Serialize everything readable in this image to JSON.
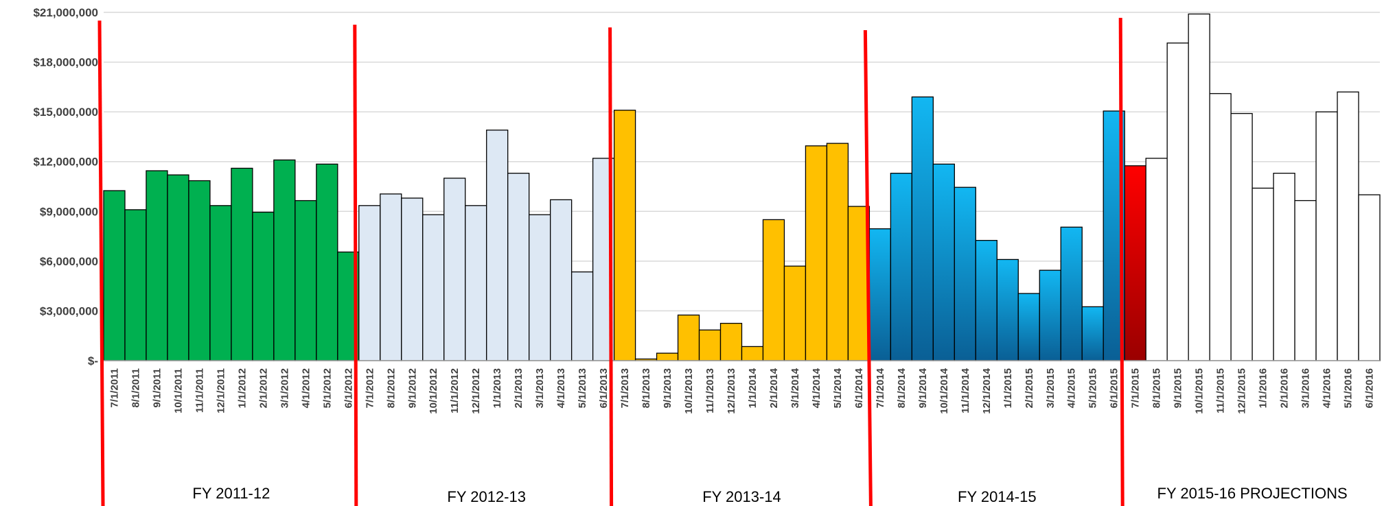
{
  "chart_data": {
    "type": "bar",
    "title": "",
    "xlabel": "",
    "ylabel": "",
    "ylim": [
      0,
      21000000
    ],
    "yticks": [
      {
        "value": 0,
        "label": "$-"
      },
      {
        "value": 3000000,
        "label": "$3,000,000"
      },
      {
        "value": 6000000,
        "label": "$6,000,000"
      },
      {
        "value": 9000000,
        "label": "$9,000,000"
      },
      {
        "value": 12000000,
        "label": "$12,000,000"
      },
      {
        "value": 15000000,
        "label": "$15,000,000"
      },
      {
        "value": 18000000,
        "label": "$18,000,000"
      },
      {
        "value": 21000000,
        "label": "$21,000,000"
      }
    ],
    "grid": true,
    "categories": [
      "7/1/2011",
      "8/1/2011",
      "9/1/2011",
      "10/1/2011",
      "11/1/2011",
      "12/1/2011",
      "1/1/2012",
      "2/1/2012",
      "3/1/2012",
      "4/1/2012",
      "5/1/2012",
      "6/1/2012",
      "7/1/2012",
      "8/1/2012",
      "9/1/2012",
      "10/1/2012",
      "11/1/2012",
      "12/1/2012",
      "1/1/2013",
      "2/1/2013",
      "3/1/2013",
      "4/1/2013",
      "5/1/2013",
      "6/1/2013",
      "7/1/2013",
      "8/1/2013",
      "9/1/2013",
      "10/1/2013",
      "11/1/2013",
      "12/1/2013",
      "1/1/2014",
      "2/1/2014",
      "3/1/2014",
      "4/1/2014",
      "5/1/2014",
      "6/1/2014",
      "7/1/2014",
      "8/1/2014",
      "9/1/2014",
      "10/1/2014",
      "11/1/2014",
      "12/1/2014",
      "1/1/2015",
      "2/1/2015",
      "3/1/2015",
      "4/1/2015",
      "5/1/2015",
      "6/1/2015",
      "7/1/2015",
      "8/1/2015",
      "9/1/2015",
      "10/1/2015",
      "11/1/2015",
      "12/1/2015",
      "1/1/2016",
      "2/1/2016",
      "3/1/2016",
      "4/1/2016",
      "5/1/2016",
      "6/1/2016"
    ],
    "values": [
      10250000,
      9100000,
      11450000,
      11200000,
      10850000,
      9350000,
      11600000,
      8950000,
      12100000,
      9650000,
      11850000,
      6550000,
      9350000,
      10050000,
      9800000,
      8800000,
      11000000,
      9350000,
      13900000,
      11300000,
      8800000,
      9700000,
      5350000,
      12200000,
      15100000,
      100000,
      450000,
      2750000,
      1850000,
      2250000,
      850000,
      8500000,
      5700000,
      12950000,
      13100000,
      9300000,
      7950000,
      11300000,
      15900000,
      11850000,
      10450000,
      7250000,
      6100000,
      4050000,
      5450000,
      8050000,
      3250000,
      15050000,
      11750000,
      12200000,
      19150000,
      20900000,
      16100000,
      14900000,
      10400000,
      11300000,
      9650000,
      15000000,
      16200000,
      10000000
    ],
    "fiscal_years": [
      {
        "label": "FY 2011-12",
        "color": "#00b050"
      },
      {
        "label": "FY 2012-13",
        "color": "#dde8f4"
      },
      {
        "label": "FY 2013-14",
        "color": "#ffc000"
      },
      {
        "label": "FY 2014-15",
        "color": "#00b0f0"
      },
      {
        "label": "FY 2015-16 PROJECTIONS",
        "color": "#ffffff"
      }
    ],
    "highlight": {
      "category": "7/1/2015",
      "color": "#ff0000"
    },
    "divider_color": "#ff0000"
  }
}
